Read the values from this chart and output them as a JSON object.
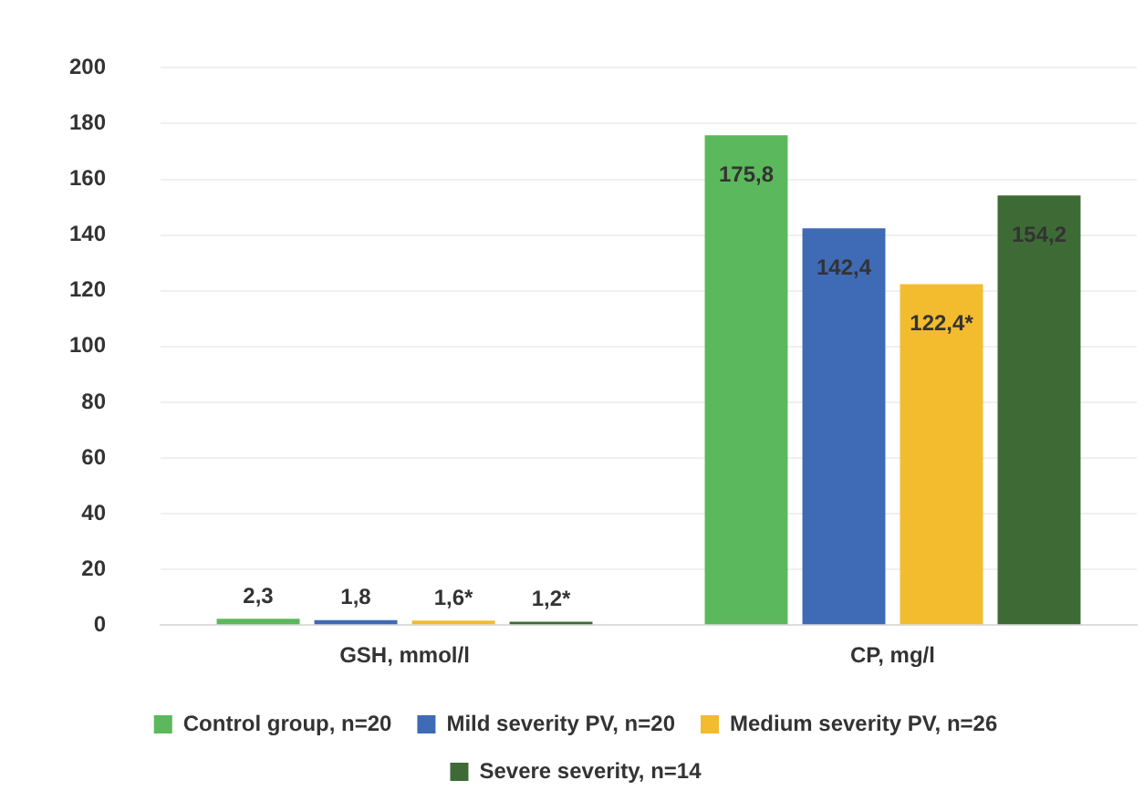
{
  "chart_data": {
    "type": "bar",
    "categories": [
      "GSH, mmol/l",
      "CP, mg/l"
    ],
    "series": [
      {
        "name": "Control group, n=20",
        "color": "#5cb85c",
        "values": [
          2.3,
          175.8
        ],
        "value_labels": [
          "2,3",
          "175,8"
        ]
      },
      {
        "name": "Mild severity PV, n=20",
        "color": "#3f6ab5",
        "values": [
          1.8,
          142.4
        ],
        "value_labels": [
          "1,8",
          "142,4"
        ]
      },
      {
        "name": "Medium severity PV, n=26",
        "color": "#f3bb2e",
        "values": [
          1.6,
          122.4
        ],
        "value_labels": [
          "1,6*",
          "122,4*"
        ]
      },
      {
        "name": "Severe severity, n=14",
        "color": "#3e6b35",
        "values": [
          1.2,
          154.2
        ],
        "value_labels": [
          "1,2*",
          "154,2"
        ]
      }
    ],
    "ylim": [
      0,
      200
    ],
    "yticks": [
      0,
      20,
      40,
      60,
      80,
      100,
      120,
      140,
      160,
      180,
      200
    ],
    "grid": "y",
    "legend": "bottom"
  }
}
